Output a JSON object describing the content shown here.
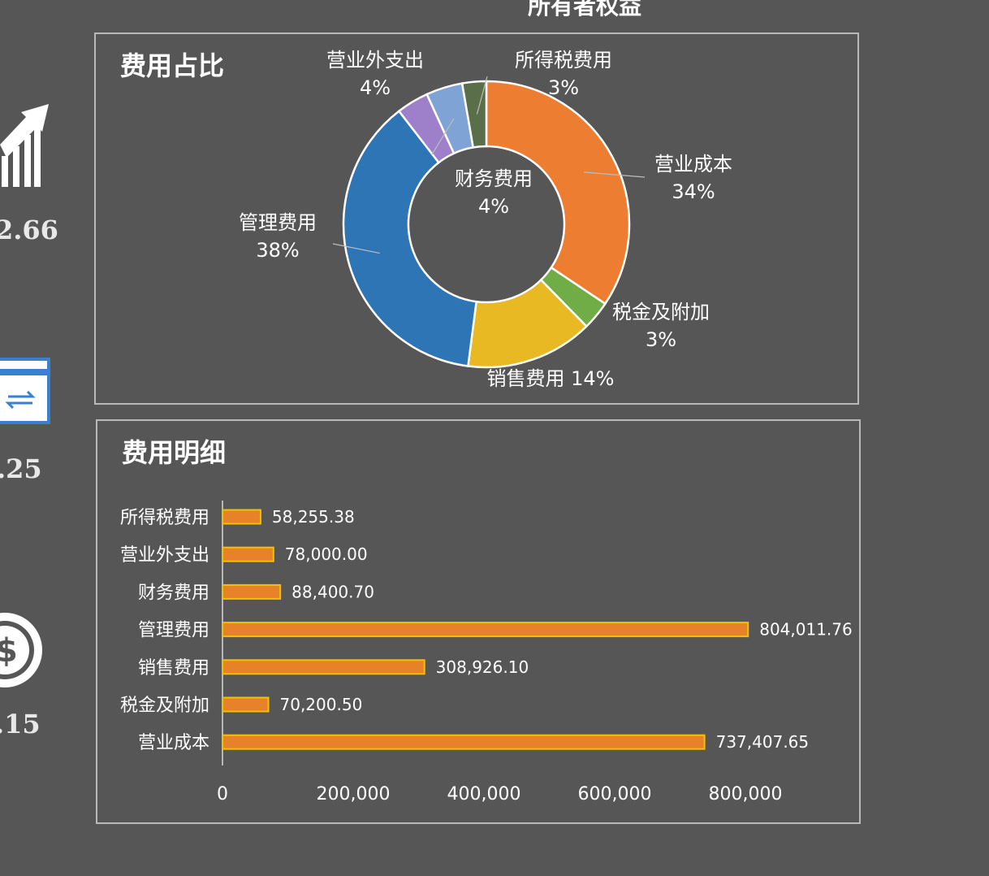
{
  "page": {
    "top_title": "所有者权益",
    "kpis": [
      {
        "value": "2.66",
        "icon": "growth-chart-arrow-icon"
      },
      {
        "value": ".25",
        "icon": "transfer-card-icon"
      },
      {
        "value": ".15",
        "icon": "dollar-gear-icon"
      }
    ]
  },
  "colors": {
    "background": "#565656",
    "bar_fill": "#E8822A",
    "bar_border": "#F2C200"
  },
  "chart_data": [
    {
      "type": "pie",
      "variant": "donut",
      "title": "费用占比",
      "slices": [
        {
          "label": "营业成本",
          "percent_label": "34%",
          "value": 737407.65,
          "color": "#ED7D31"
        },
        {
          "label": "税金及附加",
          "percent_label": "3%",
          "value": 70200.5,
          "color": "#70AD47"
        },
        {
          "label": "销售费用",
          "percent_label": "14%",
          "value": 308926.1,
          "color": "#E8B923"
        },
        {
          "label": "管理费用",
          "percent_label": "38%",
          "value": 804011.76,
          "color": "#2E75B6"
        },
        {
          "label": "营业外支出",
          "percent_label": "4%",
          "value": 78000.0,
          "color": "#9E7FC9"
        },
        {
          "label": "财务费用",
          "percent_label": "4%",
          "value": 88400.7,
          "color": "#7FA3D4"
        },
        {
          "label": "所得税费用",
          "percent_label": "3%",
          "value": 58255.38,
          "color": "#5A6E4A"
        }
      ]
    },
    {
      "type": "bar",
      "orientation": "horizontal",
      "title": "费用明细",
      "categories": [
        "所得税费用",
        "营业外支出",
        "财务费用",
        "管理费用",
        "销售费用",
        "税金及附加",
        "营业成本"
      ],
      "values": [
        58255.38,
        78000.0,
        88400.7,
        804011.76,
        308926.1,
        70200.5,
        737407.65
      ],
      "value_labels": [
        "58,255.38",
        "78,000.00",
        "88,400.70",
        "804,011.76",
        "308,926.10",
        "70,200.50",
        "737,407.65"
      ],
      "xlim": [
        0,
        800000
      ],
      "x_ticks": [
        "0",
        "200,000",
        "400,000",
        "600,000",
        "800,000"
      ],
      "grid": false
    }
  ]
}
